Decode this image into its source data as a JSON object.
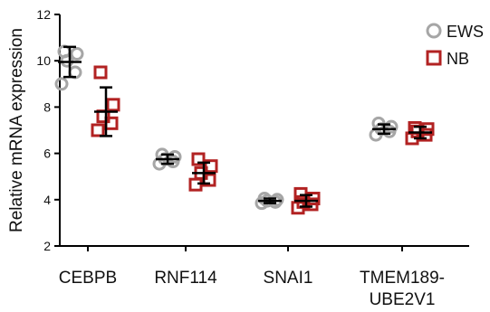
{
  "chart_data": {
    "type": "scatter",
    "title": "",
    "xlabel": "",
    "ylabel": "Relative mRNA expression",
    "ylim": [
      2,
      12
    ],
    "yticks": [
      "2",
      "4",
      "6",
      "8",
      "10",
      "12"
    ],
    "categories": [
      {
        "lines": [
          "CEBPB"
        ]
      },
      {
        "lines": [
          "RNF114"
        ]
      },
      {
        "lines": [
          "SNAI1"
        ]
      },
      {
        "lines": [
          "TMEM189-",
          "UBE2V1"
        ]
      }
    ],
    "grid": false,
    "legend_position": "top-right",
    "series": [
      {
        "name": "EWS",
        "marker": "circle",
        "color": "#a6a6a6",
        "points": [
          [
            9.0,
            9.5,
            10.0,
            10.3,
            10.4
          ],
          [
            5.55,
            5.65,
            5.75,
            5.85,
            5.95
          ],
          [
            3.85,
            3.9,
            3.95,
            4.0,
            4.05
          ],
          [
            6.8,
            6.95,
            7.05,
            7.15,
            7.3
          ]
        ],
        "mean": [
          9.95,
          5.75,
          3.95,
          7.05
        ],
        "error": [
          0.65,
          0.2,
          0.1,
          0.2
        ]
      },
      {
        "name": "NB",
        "marker": "square",
        "color": "#b22222",
        "points": [
          [
            7.0,
            7.3,
            7.6,
            8.1,
            9.5
          ],
          [
            4.65,
            4.85,
            5.15,
            5.45,
            5.75
          ],
          [
            3.65,
            3.8,
            3.9,
            4.05,
            4.25
          ],
          [
            6.65,
            6.8,
            6.95,
            7.05,
            7.1
          ]
        ],
        "mean": [
          7.8,
          5.15,
          3.95,
          6.9
        ],
        "error": [
          1.05,
          0.45,
          0.25,
          0.25
        ]
      }
    ]
  }
}
